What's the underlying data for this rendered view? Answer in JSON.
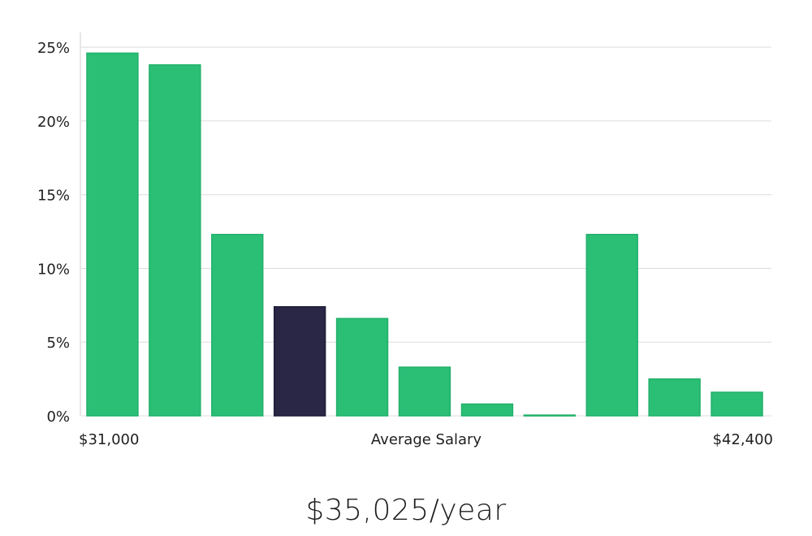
{
  "chart_data": {
    "type": "bar",
    "values": [
      24.6,
      23.8,
      12.3,
      7.4,
      6.6,
      3.3,
      0.8,
      0.05,
      12.3,
      2.5,
      1.6
    ],
    "highlight_index": 3,
    "ylim": [
      0,
      26
    ],
    "yticks": [
      0,
      5,
      10,
      15,
      20,
      25
    ],
    "ytick_labels": [
      "0%",
      "5%",
      "10%",
      "15%",
      "20%",
      "25%"
    ],
    "xlabel": "Average Salary",
    "x_min_label": "$31,000",
    "x_max_label": "$42,400",
    "grid": true,
    "colors": {
      "bar": "#2bbf76",
      "bar_edge": "#22b06b",
      "highlight": "#2a2746",
      "grid": "#dcdcdc"
    }
  },
  "summary": {
    "salary_label": "$35,025/year"
  }
}
